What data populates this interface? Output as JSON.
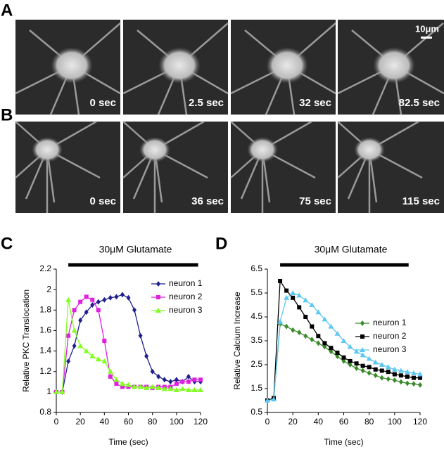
{
  "panels": [
    {
      "label": "A",
      "frames": [
        "0 sec",
        "2.5 sec",
        "32 sec",
        "82.5 sec"
      ],
      "scale_bar": "10μm"
    },
    {
      "label": "B",
      "frames": [
        "0 sec",
        "36 sec",
        "75 sec",
        "115 sec"
      ]
    }
  ],
  "chart_data": [
    {
      "type": "line",
      "label": "C",
      "title": "30μM Glutamate",
      "glutamate_span": [
        10,
        118
      ],
      "x_label": "Time (sec)",
      "y_label": "Relative PKC Translocation",
      "x": [
        0,
        5,
        10,
        15,
        20,
        25,
        30,
        35,
        40,
        45,
        50,
        55,
        60,
        65,
        70,
        75,
        80,
        85,
        90,
        95,
        100,
        105,
        110,
        115,
        120
      ],
      "xlim": [
        0,
        120
      ],
      "xticks": [
        0,
        20,
        40,
        60,
        80,
        100,
        120
      ],
      "ylim": [
        0.8,
        2.2
      ],
      "yticks": [
        0.8,
        1,
        1.2,
        1.4,
        1.6,
        1.8,
        2,
        2.2
      ],
      "legend": "right",
      "series": [
        {
          "name": "neuron 1",
          "color": "#1f1f8f",
          "marker": "diamond",
          "values": [
            1,
            1.0,
            1.3,
            1.45,
            1.7,
            1.78,
            1.85,
            1.88,
            1.9,
            1.92,
            1.93,
            1.95,
            1.92,
            1.8,
            1.55,
            1.35,
            1.2,
            1.15,
            1.12,
            1.1,
            1.12,
            1.1,
            1.15,
            1.1,
            1.1
          ]
        },
        {
          "name": "neuron 2",
          "color": "#e020e0",
          "marker": "square",
          "values": [
            1,
            1.0,
            1.55,
            1.8,
            1.88,
            1.93,
            1.9,
            1.8,
            1.5,
            1.15,
            1.08,
            1.05,
            1.05,
            1.05,
            1.05,
            1.05,
            1.04,
            1.05,
            1.05,
            1.05,
            1.08,
            1.1,
            1.1,
            1.12,
            1.12
          ]
        },
        {
          "name": "neuron 3",
          "color": "#80ff20",
          "marker": "triangle",
          "values": [
            1,
            1.0,
            1.9,
            1.6,
            1.45,
            1.4,
            1.35,
            1.32,
            1.3,
            1.2,
            1.12,
            1.08,
            1.07,
            1.05,
            1.05,
            1.04,
            1.05,
            1.04,
            1.03,
            1.03,
            1.02,
            1.03,
            1.02,
            1.02,
            1.02
          ]
        }
      ]
    },
    {
      "type": "line",
      "label": "D",
      "title": "30μM Glutamate",
      "glutamate_span": [
        10,
        111
      ],
      "x_label": "Time (sec)",
      "y_label": "Relative Calcium Increase",
      "x": [
        0,
        5,
        10,
        15,
        20,
        25,
        30,
        35,
        40,
        45,
        50,
        55,
        60,
        65,
        70,
        75,
        80,
        85,
        90,
        95,
        100,
        105,
        110,
        115,
        120
      ],
      "xlim": [
        0,
        120
      ],
      "xticks": [
        0,
        20,
        40,
        60,
        80,
        100,
        120
      ],
      "ylim": [
        0.5,
        6.5
      ],
      "yticks": [
        0.5,
        1.5,
        2.5,
        3.5,
        4.5,
        5.5,
        6.5
      ],
      "legend": "right",
      "series": [
        {
          "name": "neuron 1",
          "color": "#3a8a2a",
          "marker": "diamond",
          "values": [
            1,
            1.1,
            4.2,
            4.1,
            3.95,
            3.85,
            3.7,
            3.55,
            3.4,
            3.25,
            3.05,
            2.85,
            2.65,
            2.5,
            2.35,
            2.25,
            2.15,
            2.05,
            1.95,
            1.9,
            1.85,
            1.78,
            1.72,
            1.7,
            1.65
          ]
        },
        {
          "name": "neuron 2",
          "color": "#000000",
          "marker": "square",
          "values": [
            1,
            1.1,
            6.0,
            5.6,
            5.3,
            4.9,
            4.5,
            4.1,
            3.7,
            3.4,
            3.2,
            3.0,
            2.8,
            2.65,
            2.55,
            2.45,
            2.4,
            2.3,
            2.25,
            2.2,
            2.1,
            2.05,
            2.0,
            1.95,
            1.95
          ]
        },
        {
          "name": "neuron 3",
          "color": "#5fc8f0",
          "marker": "triangle",
          "values": [
            1,
            1.05,
            4.3,
            5.3,
            5.5,
            5.4,
            5.2,
            5.0,
            4.7,
            4.4,
            4.1,
            3.8,
            3.5,
            3.25,
            3.05,
            2.9,
            2.75,
            2.6,
            2.5,
            2.4,
            2.3,
            2.25,
            2.2,
            2.15,
            2.1
          ]
        }
      ]
    }
  ]
}
